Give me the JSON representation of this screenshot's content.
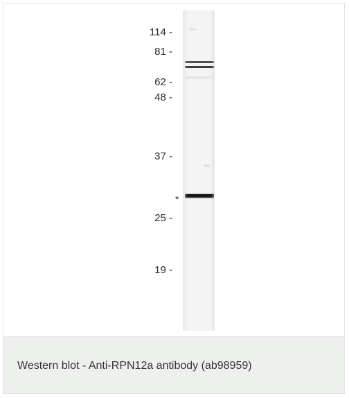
{
  "figure": {
    "markers": [
      {
        "label": "114 -",
        "kda": 114
      },
      {
        "label": "81 -",
        "kda": 81
      },
      {
        "label": "62 -",
        "kda": 62
      },
      {
        "label": "48 -",
        "kda": 48
      },
      {
        "label": "37 -",
        "kda": 37
      },
      {
        "label": "25 -",
        "kda": 25
      },
      {
        "label": "19 -",
        "kda": 19
      }
    ],
    "band_marker": "*"
  },
  "caption": {
    "text": "Western blot - Anti-RPN12a antibody (ab98959)"
  },
  "colors": {
    "caption_background": "#eef0ee",
    "lane": "#f3f3f3",
    "band": "#1a1a1a"
  }
}
